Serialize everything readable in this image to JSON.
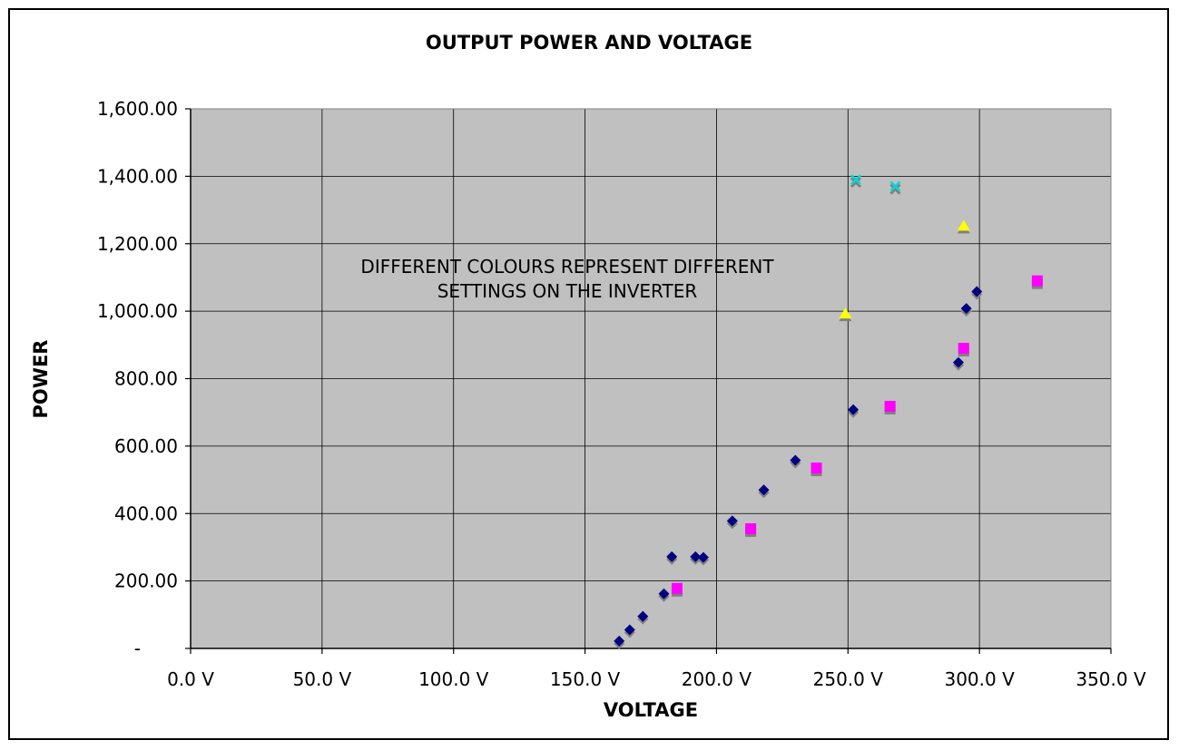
{
  "chart_data": {
    "type": "scatter",
    "title": "OUTPUT POWER AND VOLTAGE",
    "xlabel": "VOLTAGE",
    "ylabel": "POWER",
    "xlim": [
      0,
      350
    ],
    "ylim": [
      0,
      1600
    ],
    "x_ticks": [
      0,
      50,
      100,
      150,
      200,
      250,
      300,
      350
    ],
    "y_ticks": [
      0,
      200,
      400,
      600,
      800,
      1000,
      1200,
      1400,
      1600
    ],
    "x_tick_labels": [
      "0.0 V",
      "50.0 V",
      "100.0 V",
      "150.0 V",
      "200.0 V",
      "250.0 V",
      "300.0 V",
      "350.0 V"
    ],
    "y_tick_labels": [
      "-",
      "200.00",
      "400.00",
      "600.00",
      "800.00",
      "1,000.00",
      "1,200.00",
      "1,400.00",
      "1,600.00"
    ],
    "grid": true,
    "plot_background": "#c0c0c0",
    "annotation_lines": [
      "DIFFERENT COLOURS REPRESENT DIFFERENT",
      "SETTINGS ON THE INVERTER"
    ],
    "series": [
      {
        "marker": "diamond",
        "color": "#000080",
        "points": [
          [
            163,
            22
          ],
          [
            167,
            55
          ],
          [
            172,
            95
          ],
          [
            180,
            162
          ],
          [
            183,
            272
          ],
          [
            192,
            272
          ],
          [
            195,
            270
          ],
          [
            206,
            378
          ],
          [
            218,
            470
          ],
          [
            230,
            558
          ],
          [
            252,
            708
          ],
          [
            292,
            848
          ],
          [
            295,
            1008
          ],
          [
            299,
            1058
          ]
        ]
      },
      {
        "marker": "square",
        "color": "#ff00ff",
        "points": [
          [
            185,
            178
          ],
          [
            213,
            355
          ],
          [
            238,
            535
          ],
          [
            266,
            718
          ],
          [
            294,
            890
          ],
          [
            322,
            1090
          ]
        ]
      },
      {
        "marker": "triangle",
        "color": "#ffff00",
        "points": [
          [
            249,
            992
          ],
          [
            294,
            1252
          ]
        ]
      },
      {
        "marker": "x",
        "color": "#00d8d8",
        "points": [
          [
            253,
            1390
          ],
          [
            268,
            1370
          ]
        ]
      }
    ]
  }
}
